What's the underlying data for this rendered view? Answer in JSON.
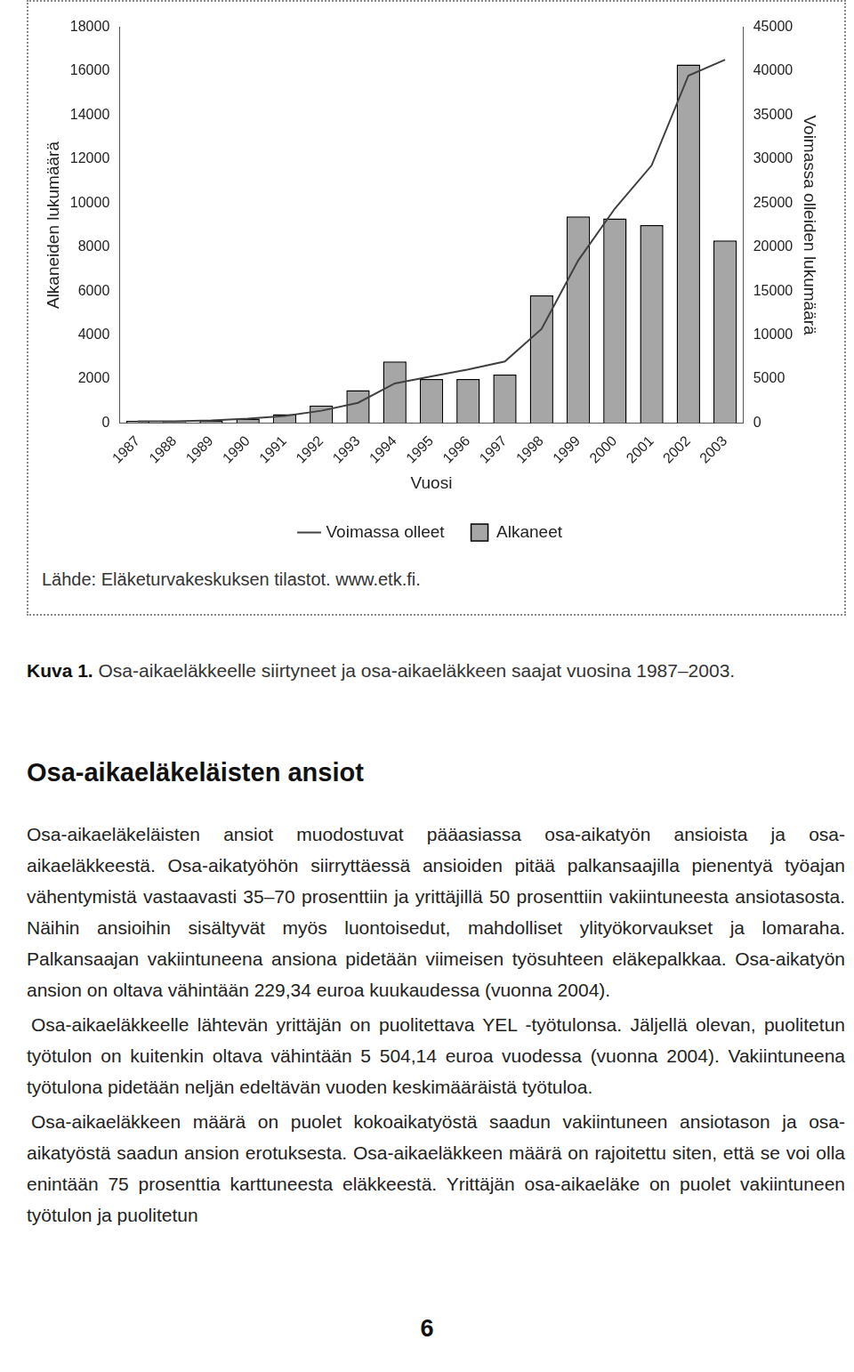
{
  "chart_data": {
    "type": "bar",
    "categories": [
      "1987",
      "1988",
      "1989",
      "1990",
      "1991",
      "1992",
      "1993",
      "1994",
      "1995",
      "1996",
      "1997",
      "1998",
      "1999",
      "2000",
      "2001",
      "2002",
      "2003"
    ],
    "x_label": "Vuosi",
    "y_label": "Alkaneiden lukumäärä",
    "y2_label": "Voimassa olleiden lukumäärä",
    "series": [
      {
        "name": "Alkaneet",
        "type": "bar",
        "color": "#a6a6a6",
        "values": [
          100,
          50,
          100,
          200,
          400,
          800,
          1500,
          2800,
          2000,
          2000,
          2200,
          5800,
          9400,
          9300,
          9000,
          16300,
          8300
        ]
      },
      {
        "name": "Voimassa olleet",
        "type": "line",
        "color": "#404040",
        "axis": "y2",
        "marker": "none",
        "values": [
          200,
          200,
          300,
          500,
          800,
          1400,
          2300,
          4500,
          5300,
          6100,
          7000,
          10700,
          18500,
          24400,
          29300,
          39500,
          41300
        ]
      }
    ],
    "ylim": [
      0,
      18000
    ],
    "yticks": [
      0,
      2000,
      4000,
      6000,
      8000,
      10000,
      12000,
      14000,
      16000,
      18000
    ],
    "y2lim": [
      0,
      45000
    ],
    "y2ticks": [
      0,
      5000,
      10000,
      15000,
      20000,
      25000,
      30000,
      35000,
      40000,
      45000
    ],
    "legend": "bottom",
    "grid": false
  },
  "source": "Lähde: Eläketurvakeskuksen tilastot. www.etk.fi.",
  "caption": {
    "label": "Kuva 1.",
    "text": "Osa-aikaeläkkeelle siirtyneet ja osa-aikaeläkkeen saajat vuosina 1987–2003."
  },
  "heading": "Osa-aikaeläkeläisten ansiot",
  "paragraphs": [
    "Osa-aikaeläkeläisten ansiot muodostuvat pääasiassa osa-aikatyön ansioista ja osa-aikaeläkkeestä. Osa-aikatyöhön siirryttäessä ansioiden pitää palkansaajilla pienentyä työajan vähentymistä vastaavasti 35–70 prosenttiin ja yrittäjillä 50 prosenttiin vakiintuneesta ansiotasosta. Näihin ansioihin sisältyvät myös luontoisedut, mahdolliset ylityökorvaukset ja lomaraha. Palkansaajan vakiintuneena ansiona pidetään viimeisen työsuhteen eläkepalkkaa. Osa-aikatyön ansion on oltava vähintään 229,34 euroa kuukaudessa (vuonna 2004).",
    "Osa-aikaeläkkeelle lähtevän yrittäjän on puolitettava YEL -työtulonsa. Jäljellä olevan, puolitetun työtulon on kuitenkin oltava vähintään 5 504,14 euroa vuodessa (vuonna 2004). Vakiintuneena työtulona pidetään neljän edeltävän vuoden keskimääräistä työtuloa.",
    "Osa-aikaeläkkeen määrä on puolet kokoaikatyöstä saadun vakiintuneen ansiotason ja osa-aikatyöstä saadun ansion erotuksesta. Osa-aikaeläkkeen määrä on rajoitettu siten, että se voi olla enintään 75 prosenttia karttuneesta eläkkeestä. Yrittäjän osa-aikaeläke on puolet vakiintuneen työtulon ja puolitetun"
  ],
  "page_number": "6"
}
